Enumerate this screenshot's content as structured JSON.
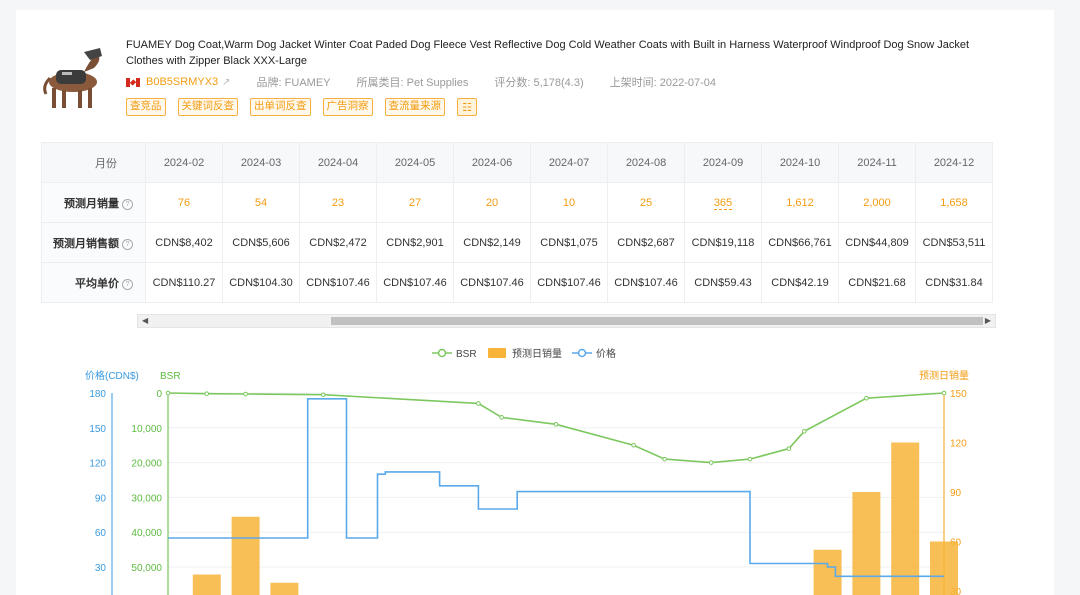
{
  "product": {
    "title": "FUAMEY Dog Coat,Warm Dog Jacket Winter Coat Paded Dog Fleece Vest Reflective Dog Cold Weather Coats with Built in Harness Waterproof Windproof Dog Snow Jacket Clothes with Zipper Black XXX-Large",
    "asin": "B0B5SRMYX3",
    "brand": "品牌: FUAMEY",
    "category": "所属类目: Pet Supplies",
    "rating": "评分数: 5,178(4.3)",
    "listed": "上架时间: 2022-07-04",
    "icons": {
      "flag": "canada-flag-icon",
      "ext": "external-link-icon",
      "calc": "calculator-icon"
    }
  },
  "actions": [
    "查竞品",
    "关键词反查",
    "出单词反查",
    "广告洞察",
    "查流量来源"
  ],
  "table": {
    "row_labels": [
      "月份",
      "预测月销量",
      "预测月销售额",
      "平均单价"
    ],
    "months": [
      "2024-02",
      "2024-03",
      "2024-04",
      "2024-05",
      "2024-06",
      "2024-07",
      "2024-08",
      "2024-09",
      "2024-10",
      "2024-11",
      "2024-12"
    ],
    "units": [
      "76",
      "54",
      "23",
      "27",
      "20",
      "10",
      "25",
      "365",
      "1,612",
      "2,000",
      "1,658"
    ],
    "revenue": [
      "CDN$8,402",
      "CDN$5,606",
      "CDN$2,472",
      "CDN$2,901",
      "CDN$2,149",
      "CDN$1,075",
      "CDN$2,687",
      "CDN$19,118",
      "CDN$66,761",
      "CDN$44,809",
      "CDN$53,511"
    ],
    "price": [
      "CDN$110.27",
      "CDN$104.30",
      "CDN$107.46",
      "CDN$107.46",
      "CDN$107.46",
      "CDN$107.46",
      "CDN$107.46",
      "CDN$59.43",
      "CDN$42.19",
      "CDN$21.68",
      "CDN$31.84"
    ]
  },
  "chart_data": {
    "type": "line",
    "legend": [
      "BSR",
      "预测日销量",
      "价格"
    ],
    "axis_labels": {
      "left_price": "价格(CDN$)",
      "left_bsr": "BSR",
      "right": "预测日销量"
    },
    "price_ticks": [
      "180",
      "150",
      "120",
      "90",
      "60",
      "30"
    ],
    "bsr_ticks": [
      "0",
      "10,000",
      "20,000",
      "30,000",
      "40,000",
      "50,000"
    ],
    "sales_ticks": [
      "150",
      "120",
      "90",
      "60",
      "30"
    ],
    "colors": {
      "bsr": "#7cc85e",
      "sales": "#f7b438",
      "price": "#5aa9ea",
      "price_axis": "#3a9ae0",
      "bsr_axis": "#5dbb3f",
      "sales_axis": "#f39c12"
    },
    "series": [
      {
        "name": "BSR",
        "x": [
          0,
          5,
          10,
          20,
          40,
          43,
          50,
          60,
          64,
          70,
          75,
          80,
          82,
          90,
          100
        ],
        "y": [
          0,
          200,
          300,
          500,
          3000,
          7000,
          9000,
          15000,
          19000,
          20000,
          19000,
          16000,
          11000,
          1500,
          0
        ]
      },
      {
        "name": "价格",
        "x": [
          0,
          17,
          18,
          22,
          23,
          27,
          28,
          35,
          38,
          40,
          45,
          72,
          75,
          83,
          85,
          86,
          100
        ],
        "y": [
          55,
          55,
          175,
          175,
          55,
          110,
          112,
          100,
          100,
          80,
          95,
          95,
          33,
          33,
          30,
          22,
          22
        ]
      },
      {
        "name": "预测日销量",
        "x": [
          0,
          5,
          10,
          15,
          20,
          25,
          30,
          35,
          40,
          45,
          50,
          55,
          60,
          65,
          70,
          75,
          80,
          85,
          90,
          95,
          100
        ],
        "y": [
          0,
          40,
          75,
          35,
          5,
          2,
          1,
          0,
          0,
          0,
          0,
          0,
          0,
          0,
          0,
          0,
          5,
          55,
          90,
          120,
          60
        ]
      }
    ]
  }
}
